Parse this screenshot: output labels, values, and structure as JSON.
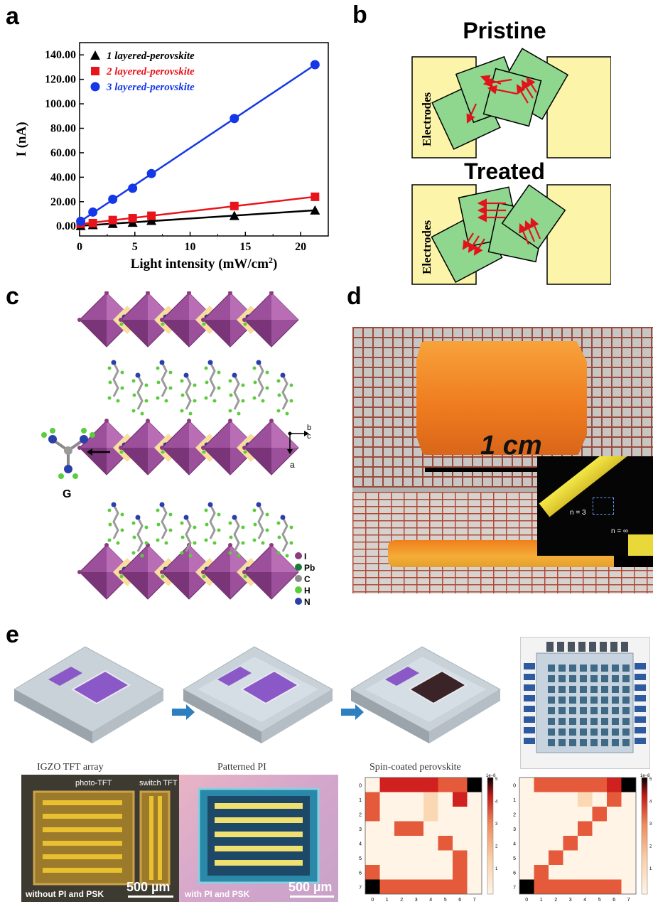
{
  "panels": {
    "a": "a",
    "b": "b",
    "c": "c",
    "d": "d",
    "e": "e"
  },
  "chart_data": {
    "type": "line",
    "xlabel": "Light intensity (mW/cm",
    "xlabel_sup": "2",
    "xlabel_tail": ")",
    "ylabel": "I (nA)",
    "xlim": [
      0,
      22.5
    ],
    "ylim": [
      -8,
      150
    ],
    "xticks": [
      "0",
      "5",
      "10",
      "15",
      "20"
    ],
    "xtick_values": [
      0,
      5,
      10,
      15,
      20
    ],
    "yticks": [
      "0.00",
      "20.00",
      "40.00",
      "60.00",
      "80.00",
      "100.00",
      "120.00",
      "140.00"
    ],
    "ytick_values": [
      0,
      20,
      40,
      60,
      80,
      100,
      120,
      140
    ],
    "legend": "top-left",
    "series": [
      {
        "name": "1 layered-perovskite",
        "color": "#000000",
        "marker": "triangle",
        "x": [
          0.1,
          1.2,
          3.0,
          4.8,
          6.5,
          14.0,
          21.3
        ],
        "y": [
          0.3,
          1.0,
          2.0,
          3.0,
          4.5,
          8.5,
          13.0
        ]
      },
      {
        "name": "2 layered-perovskite",
        "color": "#e8141a",
        "marker": "square",
        "x": [
          0.1,
          1.2,
          3.0,
          4.8,
          6.5,
          14.0,
          21.3
        ],
        "y": [
          2.0,
          2.5,
          5.0,
          6.5,
          8.5,
          16.5,
          24.0
        ]
      },
      {
        "name": "3 layered-perovskite",
        "color": "#1437e8",
        "marker": "circle",
        "x": [
          0.1,
          1.2,
          3.0,
          4.8,
          6.5,
          14.0,
          21.3
        ],
        "y": [
          4.0,
          11.5,
          22.0,
          31.0,
          43.0,
          88.0,
          132.0
        ]
      }
    ]
  },
  "panel_b": {
    "pristine": "Pristine",
    "treated": "Treated",
    "electrodes": "Electrodes"
  },
  "panel_c": {
    "g_label": "G",
    "axis_b": "b",
    "axis_c": "c",
    "axis_a": "a",
    "legend": [
      {
        "label": "I",
        "color": "#8e3a7e"
      },
      {
        "label": "Pb",
        "color": "#1f7a3a"
      },
      {
        "label": "C",
        "color": "#8a8a8a"
      },
      {
        "label": "H",
        "color": "#5bcc3c"
      },
      {
        "label": "N",
        "color": "#2b3fa8"
      }
    ]
  },
  "panel_d": {
    "scale": "1 cm",
    "n3": "n = 3",
    "ninf": "n = ∞"
  },
  "panel_e": {
    "step1": "IGZO TFT array",
    "step2": "Patterned PI",
    "step3": "Spin-coated perovskite",
    "photo_tft": "photo-TFT",
    "switch_tft": "switch TFT",
    "without": "without PI and PSK",
    "with": "with PI and PSK",
    "scale1": "500 µm",
    "scale2": "500 µm",
    "exp": "1e−8",
    "cbar_ticks": [
      "5",
      "4",
      "3",
      "2",
      "1"
    ],
    "row_ticks": [
      "0",
      "1",
      "2",
      "3",
      "4",
      "5",
      "6",
      "7"
    ],
    "col_ticks": [
      "0",
      "1",
      "2",
      "3",
      "4",
      "5",
      "6",
      "7"
    ],
    "heatmap1": [
      [
        0,
        4,
        4,
        4,
        4,
        3,
        3,
        5
      ],
      [
        3,
        0,
        0,
        0,
        1,
        0,
        4,
        0
      ],
      [
        3,
        0,
        0,
        0,
        1,
        0,
        0,
        0
      ],
      [
        0,
        0,
        3,
        3,
        0,
        0,
        0,
        0
      ],
      [
        0,
        0,
        0,
        0,
        0,
        3,
        0,
        0
      ],
      [
        0,
        0,
        0,
        0,
        0,
        0,
        3,
        0
      ],
      [
        3,
        0,
        0,
        0,
        0,
        0,
        3,
        0
      ],
      [
        5,
        3,
        3,
        3,
        3,
        3,
        3,
        0
      ]
    ],
    "heatmap2": [
      [
        0,
        3,
        3,
        3,
        3,
        3,
        4,
        5
      ],
      [
        0,
        0,
        0,
        0,
        1,
        0,
        3,
        0
      ],
      [
        0,
        0,
        0,
        0,
        0,
        3,
        0,
        0
      ],
      [
        0,
        0,
        0,
        0,
        3,
        0,
        0,
        0
      ],
      [
        0,
        0,
        0,
        3,
        0,
        0,
        0,
        0
      ],
      [
        0,
        0,
        3,
        0,
        0,
        0,
        0,
        0
      ],
      [
        0,
        3,
        0,
        0,
        0,
        0,
        0,
        0
      ],
      [
        5,
        3,
        3,
        3,
        3,
        3,
        3,
        0
      ]
    ]
  }
}
